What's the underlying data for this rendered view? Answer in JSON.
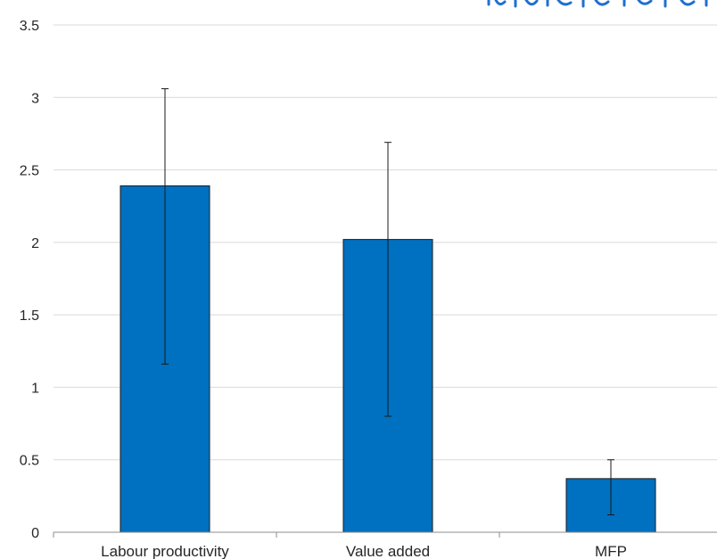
{
  "chart_data": {
    "type": "bar",
    "categories": [
      "Labour productivity",
      "Value added",
      "MFP"
    ],
    "series": [
      {
        "values": [
          2.39,
          2.02,
          0.37
        ],
        "error_low": [
          1.16,
          0.8,
          0.12
        ],
        "error_high": [
          3.06,
          2.69,
          0.5
        ]
      }
    ],
    "ylim": [
      0,
      3.5
    ],
    "yticks": [
      0,
      0.5,
      1,
      1.5,
      2,
      2.5,
      3,
      3.5
    ],
    "ytick_labels": [
      "0",
      "0.5",
      "1",
      "1.5",
      "2",
      "2.5",
      "3",
      "3.5"
    ],
    "grid": true,
    "legend": "none",
    "colors": {
      "bar": "#0070C0",
      "bar_outline": "#1a1a1a",
      "error_bar": "#1a1a1a",
      "grid": "#d9d9d9",
      "axis": "#8c8c8c",
      "text": "#262626",
      "header_fragment": "#1f6fd1"
    }
  }
}
